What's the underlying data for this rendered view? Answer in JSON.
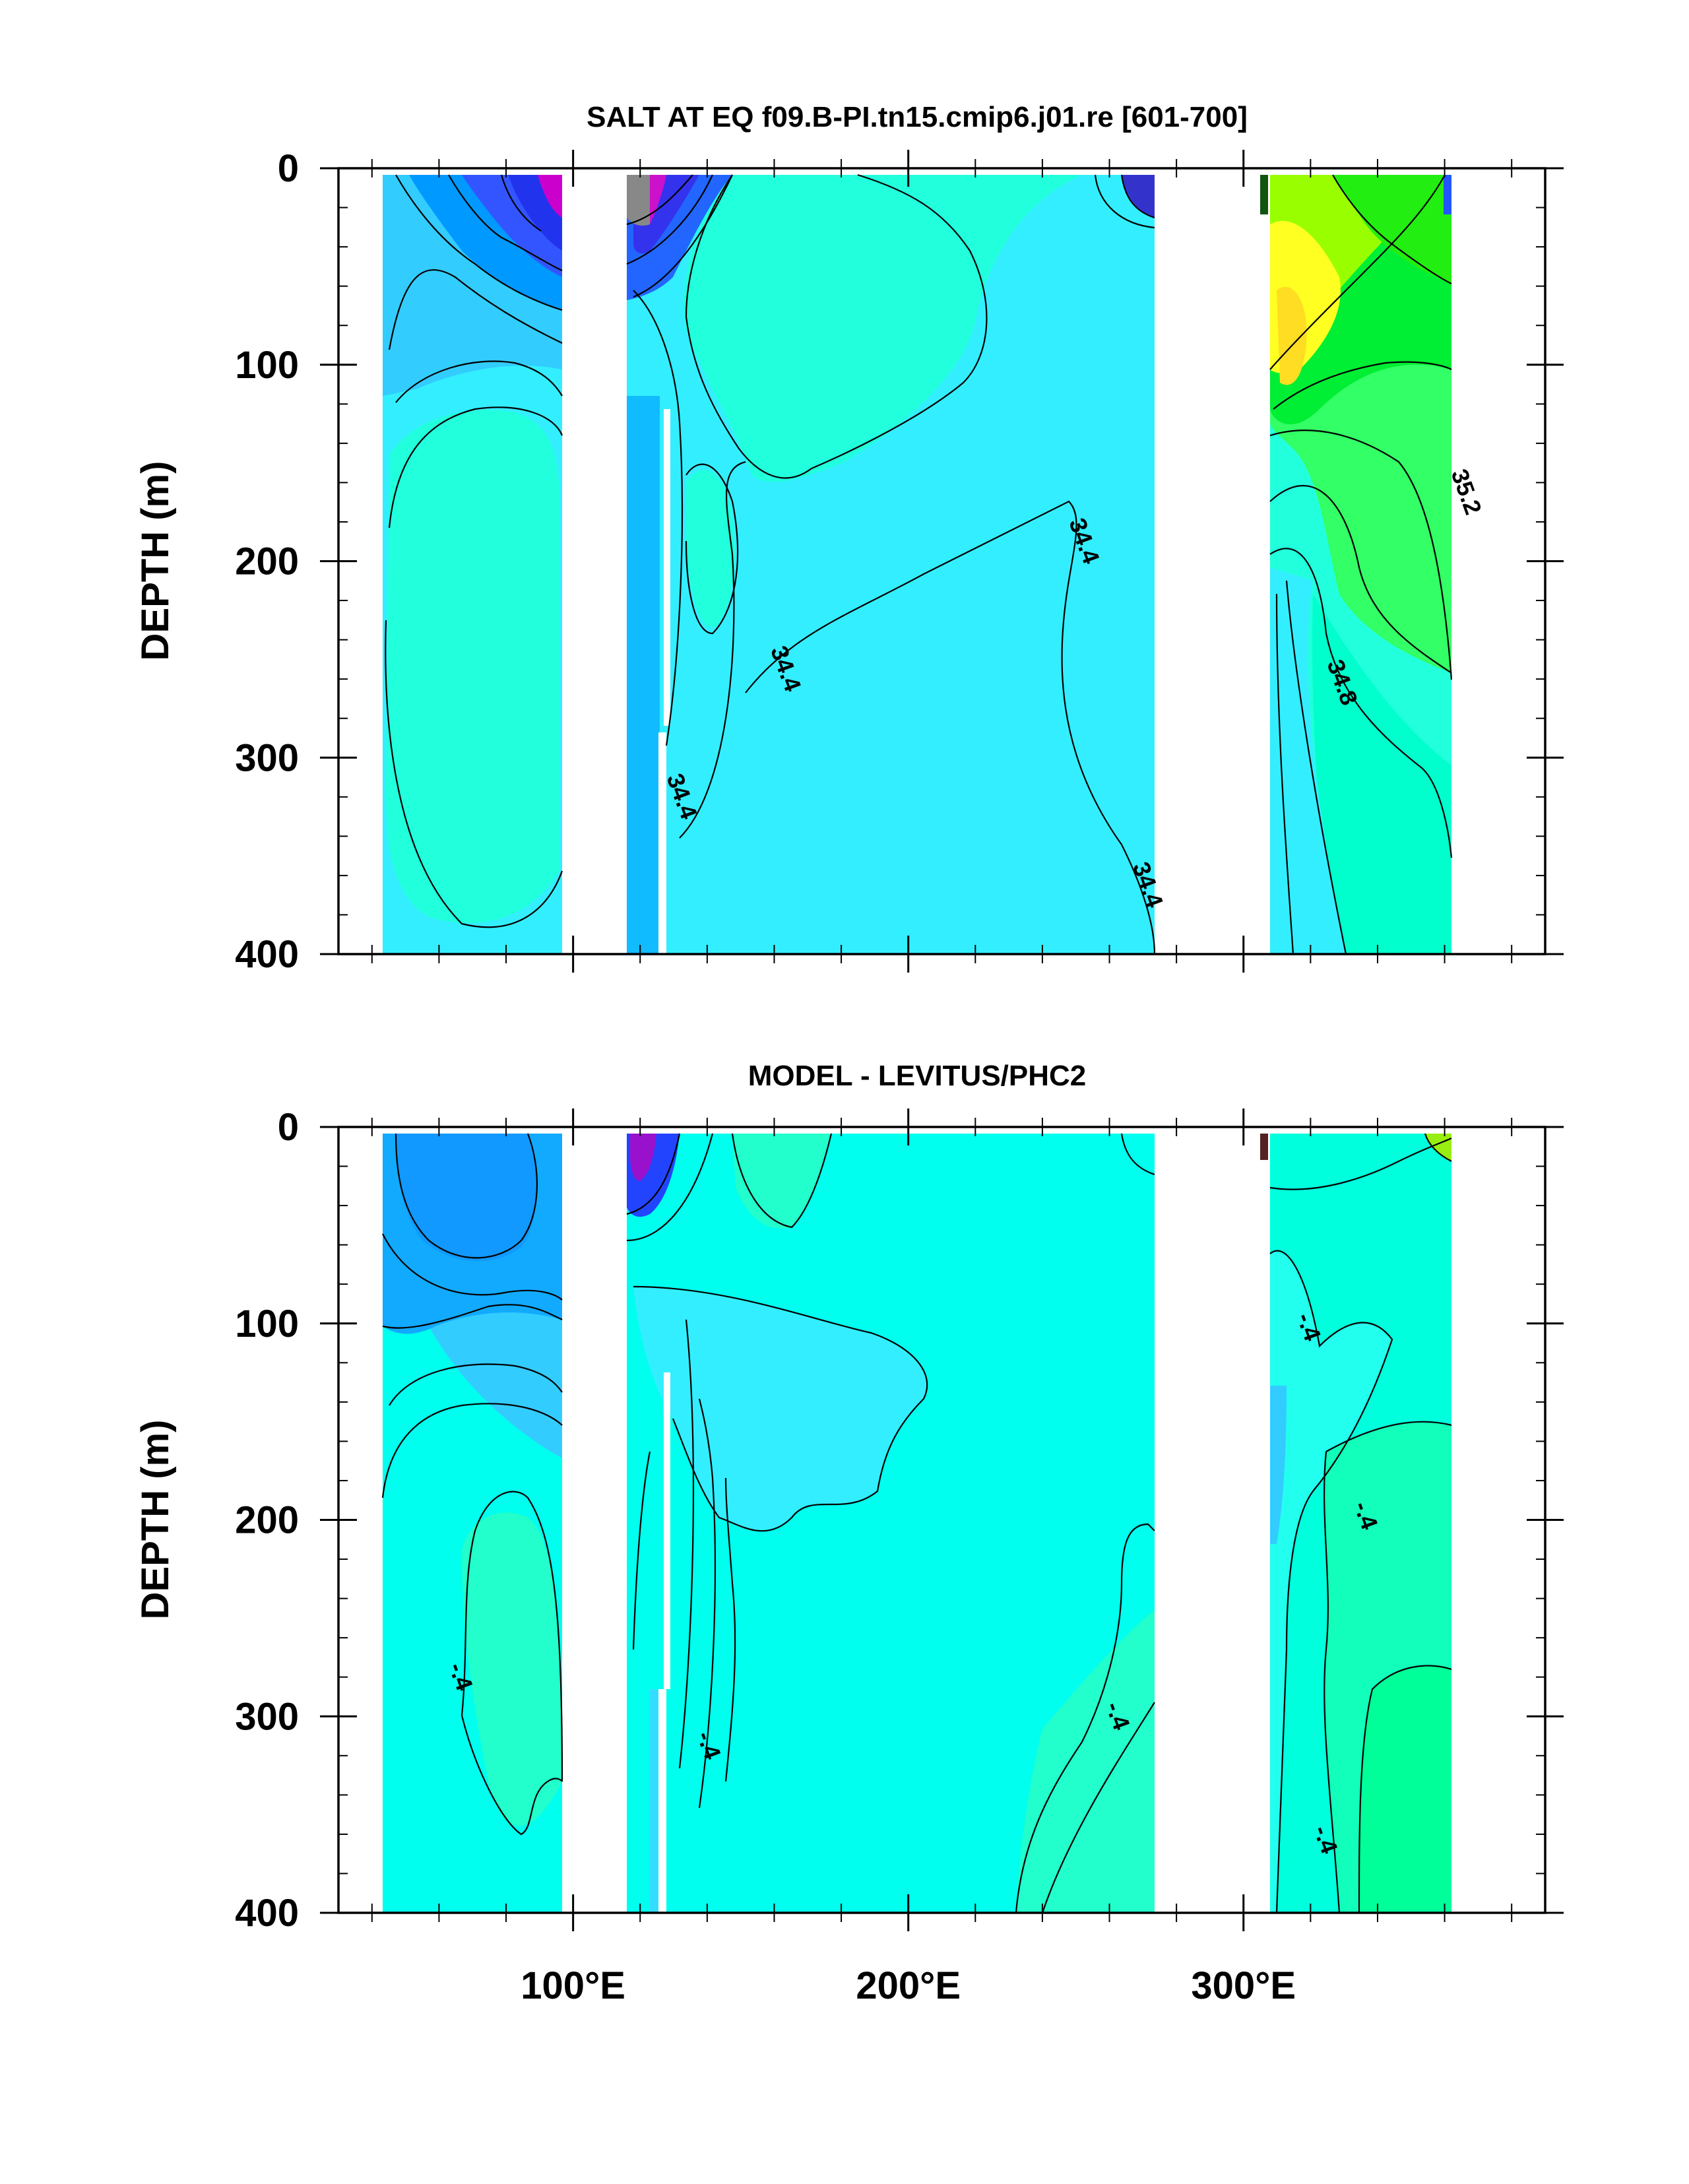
{
  "chart_data": [
    {
      "type": "contour",
      "title": "SALT AT EQ f09.B-PI.tn15.cmip6.j01.re [601-700]",
      "ylabel": "DEPTH (m)",
      "xlabel": "",
      "ylim": [
        400,
        0
      ],
      "y_ticks": [
        "0",
        "100",
        "200",
        "300",
        "400"
      ],
      "x_ticks": [
        "100°E",
        "200°E",
        "300°E"
      ],
      "xlim": [
        30,
        390
      ],
      "contour_labels": [
        {
          "text": "35.2",
          "x": 366,
          "y": 165
        },
        {
          "text": "34.4",
          "x": 252,
          "y": 190
        },
        {
          "text": "34.4",
          "x": 163,
          "y": 255
        },
        {
          "text": "34.8",
          "x": 329,
          "y": 262
        },
        {
          "text": "34.4",
          "x": 132,
          "y": 320
        },
        {
          "text": "34.4",
          "x": 271,
          "y": 365
        }
      ],
      "colors": {
        "background": "#33eeff",
        "high": "#ffee33",
        "mid": "#33ff66",
        "low": "#2233ff",
        "lowest": "#cc00cc"
      }
    },
    {
      "type": "contour",
      "title": "MODEL - LEVITUS/PHC2",
      "ylabel": "DEPTH (m)",
      "xlabel": "",
      "ylim": [
        400,
        0
      ],
      "y_ticks": [
        "0",
        "100",
        "200",
        "300",
        "400"
      ],
      "x_ticks": [
        "100°E",
        "200°E",
        "300°E"
      ],
      "xlim": [
        30,
        390
      ],
      "contour_labels": [
        {
          "text": "-.4",
          "x": 319,
          "y": 102
        },
        {
          "text": "-.4",
          "x": 336,
          "y": 198
        },
        {
          "text": "-.4",
          "x": 66,
          "y": 280
        },
        {
          "text": "-.4",
          "x": 140,
          "y": 315
        },
        {
          "text": "-.4",
          "x": 262,
          "y": 300
        },
        {
          "text": "-.4",
          "x": 324,
          "y": 363
        }
      ],
      "colors": {
        "background": "#00ffee",
        "negative": "#1199ff",
        "positive": "#00ffbb"
      }
    }
  ]
}
